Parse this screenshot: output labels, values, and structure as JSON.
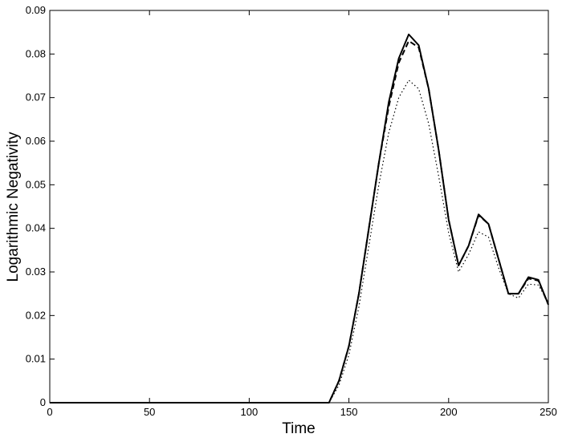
{
  "chart_data": {
    "type": "line",
    "xlabel": "Time",
    "ylabel": "Logarithmic Negativity",
    "x": [
      0,
      140,
      145,
      150,
      155,
      160,
      165,
      170,
      175,
      180,
      185,
      190,
      195,
      200,
      205,
      210,
      215,
      220,
      225,
      230,
      235,
      240,
      245,
      250
    ],
    "series": [
      {
        "color": "#000000",
        "dash": "solid",
        "values": [
          0,
          0,
          0.005,
          0.013,
          0.025,
          0.04,
          0.055,
          0.069,
          0.079,
          0.0845,
          0.082,
          0.072,
          0.058,
          0.042,
          0.0315,
          0.036,
          0.0432,
          0.041,
          0.033,
          0.025,
          0.025,
          0.0288,
          0.0282,
          0.0225
        ]
      },
      {
        "color": "#000000",
        "dash": "dashed",
        "values": [
          0,
          0,
          0.005,
          0.013,
          0.025,
          0.04,
          0.055,
          0.068,
          0.078,
          0.083,
          0.0815,
          0.072,
          0.058,
          0.042,
          0.0315,
          0.036,
          0.043,
          0.041,
          0.033,
          0.025,
          0.025,
          0.0285,
          0.028,
          0.0225
        ]
      },
      {
        "color": "#000000",
        "dash": "dotted",
        "values": [
          0,
          0,
          0.004,
          0.011,
          0.022,
          0.036,
          0.05,
          0.062,
          0.07,
          0.074,
          0.072,
          0.064,
          0.052,
          0.039,
          0.03,
          0.034,
          0.0392,
          0.038,
          0.031,
          0.025,
          0.024,
          0.0272,
          0.027,
          0.023
        ]
      }
    ],
    "xlim": [
      0,
      250
    ],
    "xticks": [
      0,
      50,
      100,
      150,
      200,
      250
    ],
    "ylim": [
      0,
      0.09
    ],
    "yticks": [
      0,
      0.01,
      0.02,
      0.03,
      0.04,
      0.05,
      0.06,
      0.07,
      0.08,
      0.09
    ],
    "grid": false
  }
}
